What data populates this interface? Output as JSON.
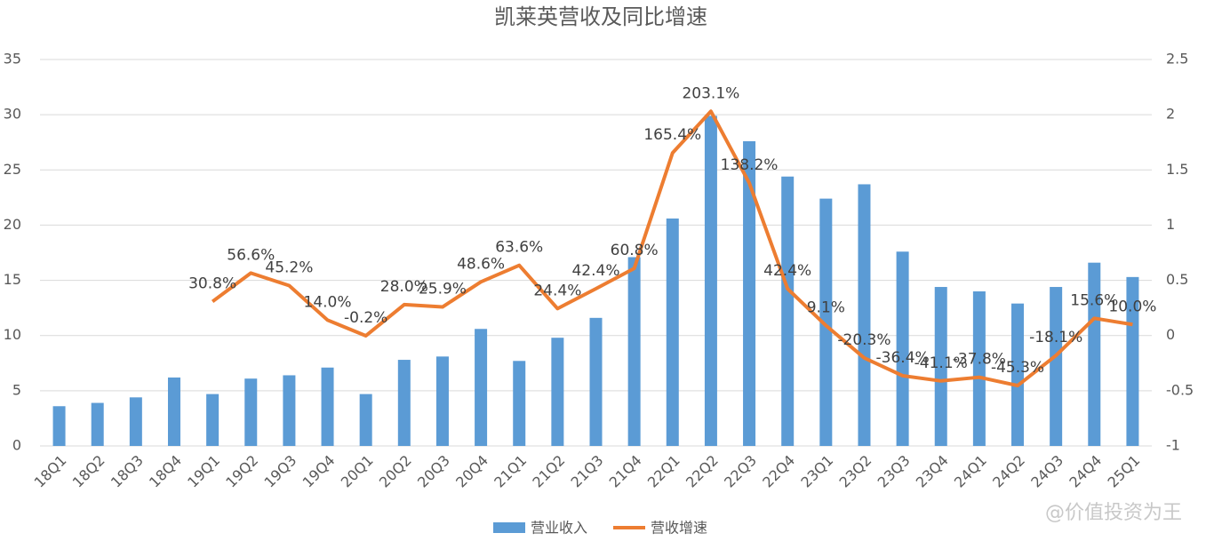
{
  "chart_data": {
    "type": "bar_line",
    "title": "凯莱英营收及同比增速",
    "categories": [
      "18Q1",
      "18Q2",
      "18Q3",
      "18Q4",
      "19Q1",
      "19Q2",
      "19Q3",
      "19Q4",
      "20Q1",
      "20Q2",
      "20Q3",
      "20Q4",
      "21Q1",
      "21Q2",
      "21Q3",
      "21Q4",
      "22Q1",
      "22Q2",
      "22Q3",
      "22Q4",
      "23Q1",
      "23Q2",
      "23Q3",
      "23Q4",
      "24Q1",
      "24Q2",
      "24Q3",
      "24Q4",
      "25Q1"
    ],
    "series": [
      {
        "name": "营业收入",
        "type": "bar",
        "color": "#5b9bd5",
        "values": [
          3.6,
          3.9,
          4.4,
          6.2,
          4.7,
          6.1,
          6.4,
          7.1,
          4.7,
          7.8,
          8.1,
          10.6,
          7.7,
          9.8,
          11.6,
          17.1,
          20.6,
          29.9,
          27.6,
          24.4,
          22.4,
          23.7,
          17.6,
          14.4,
          14.0,
          12.9,
          14.4,
          16.6,
          15.3
        ]
      },
      {
        "name": "营收增速",
        "type": "line",
        "axis": "y2",
        "color": "#ed7d31",
        "values": [
          null,
          null,
          null,
          null,
          0.308,
          0.566,
          0.452,
          0.14,
          -0.002,
          0.28,
          0.259,
          0.486,
          0.636,
          0.244,
          0.424,
          0.608,
          1.654,
          2.031,
          1.382,
          0.424,
          0.091,
          -0.203,
          -0.364,
          -0.411,
          -0.378,
          -0.453,
          -0.181,
          0.156,
          0.1
        ],
        "value_labels": [
          null,
          null,
          null,
          null,
          "30.8%",
          "56.6%",
          "45.2%",
          "14.0%",
          "-0.2%",
          "28.0%",
          "25.9%",
          "48.6%",
          "63.6%",
          "24.4%",
          "42.4%",
          "60.8%",
          "165.4%",
          "203.1%",
          "138.2%",
          "42.4%",
          "9.1%",
          "-20.3%",
          "-36.4%",
          "-41.1%",
          "-37.8%",
          "-45.3%",
          "-18.1%",
          "15.6%",
          "10.0%"
        ]
      }
    ],
    "ylim": [
      0,
      35
    ],
    "yticks": [
      0,
      5,
      10,
      15,
      20,
      25,
      30,
      35
    ],
    "y2lim": [
      -1,
      2.5
    ],
    "y2ticks": [
      -1,
      -0.5,
      0,
      0.5,
      1,
      1.5,
      2,
      2.5
    ],
    "grid": true,
    "legend": "bottom",
    "watermark": "@价值投资为王"
  }
}
